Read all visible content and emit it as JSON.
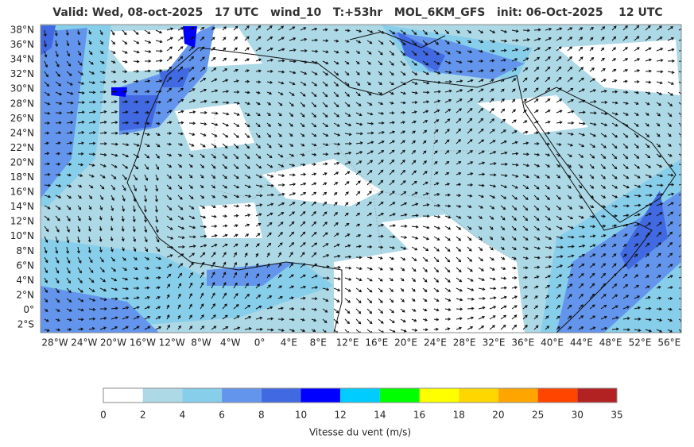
{
  "title": "Valid: Wed, 08-oct-2025   17 UTC   wind_10   T:+53hr   MOL_6KM_GFS   init: 06-Oct-2025    12 UTC",
  "lat_labels": [
    "38°N",
    "36°N",
    "34°N",
    "32°N",
    "30°N",
    "28°N",
    "26°N",
    "24°N",
    "22°N",
    "20°N",
    "18°N",
    "16°N",
    "14°N",
    "12°N",
    "10°N",
    "8°N",
    "6°N",
    "4°N",
    "2°N",
    "0°",
    "2°S"
  ],
  "lon_labels": [
    "28°W",
    "24°W",
    "20°W",
    "16°W",
    "12°W",
    "8°W",
    "4°W",
    "0°",
    "4°E",
    "8°E",
    "12°E",
    "16°E",
    "20°E",
    "24°E",
    "28°E",
    "32°E",
    "36°E",
    "40°E",
    "44°E",
    "48°E",
    "52°E",
    "56°E"
  ],
  "colorbar": {
    "ticks": [
      0,
      2,
      4,
      6,
      8,
      10,
      12,
      14,
      16,
      18,
      20,
      25,
      30,
      35
    ],
    "colors": [
      "#ffffff",
      "#add8e6",
      "#87ceeb",
      "#6495ed",
      "#4169e1",
      "#0000ff",
      "#00ccff",
      "#00ff00",
      "#ffff00",
      "#ffd700",
      "#ffa500",
      "#ff4500",
      "#b22222"
    ],
    "label": "Vitesse du vent (m/s)"
  }
}
